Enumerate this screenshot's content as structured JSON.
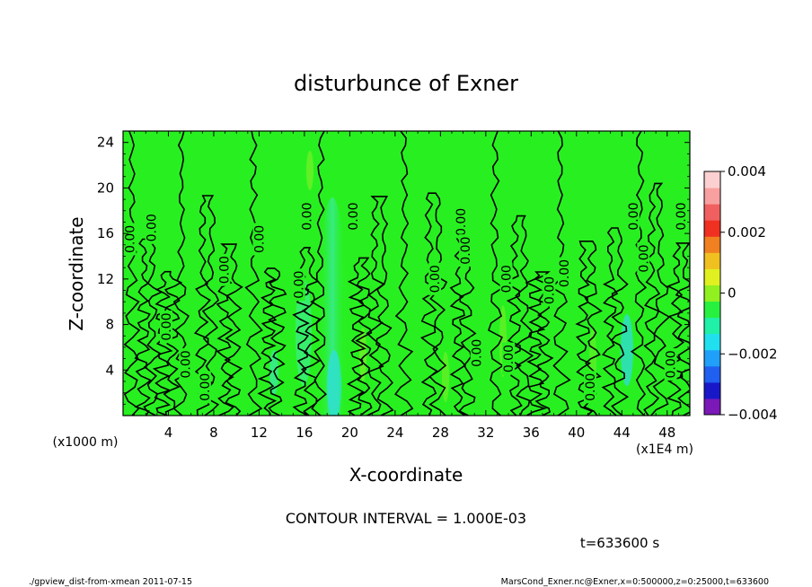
{
  "chart_data": {
    "type": "heatmap",
    "title": "disturbunce of Exner",
    "xlabel": "X-coordinate",
    "ylabel": "Z-coordinate",
    "x_unit_label": "(x1E4 m)",
    "y_unit_label": "(x1000 m)",
    "xlim": [
      0,
      50
    ],
    "ylim": [
      0,
      25
    ],
    "x_ticks": [
      4,
      8,
      12,
      16,
      20,
      24,
      28,
      32,
      36,
      40,
      44,
      48
    ],
    "y_ticks": [
      4,
      8,
      12,
      16,
      20,
      24
    ],
    "x_tick_labels": [
      "4",
      "8",
      "12",
      "16",
      "20",
      "24",
      "28",
      "32",
      "36",
      "40",
      "44",
      "48"
    ],
    "y_tick_labels": [
      "4",
      "8",
      "12",
      "16",
      "20",
      "24"
    ],
    "colorbar": {
      "range": [
        -0.004,
        0.004
      ],
      "tick_values": [
        0.004,
        0.002,
        0,
        -0.002,
        -0.004
      ],
      "tick_labels": [
        "0.004",
        "0.002",
        "0",
        "−0.002",
        "−0.004"
      ],
      "colors": [
        "#7b18b8",
        "#1818c8",
        "#2060f0",
        "#20a0f8",
        "#20e0f0",
        "#20f0a8",
        "#28f040",
        "#90f020",
        "#e0f020",
        "#f0c020",
        "#f08020",
        "#f03020",
        "#f06060",
        "#f8a0a0",
        "#fcd0d0"
      ]
    },
    "background_color": "#28f020",
    "contour_interval_text": "CONTOUR INTERVAL = 1.000E-03",
    "contour_label": "0.00",
    "contour_label_positions": [
      {
        "x": 0.6,
        "z": 15.5
      },
      {
        "x": 2.5,
        "z": 16.5
      },
      {
        "x": 3.8,
        "z": 7.8
      },
      {
        "x": 5.5,
        "z": 4.5
      },
      {
        "x": 7.2,
        "z": 2.5
      },
      {
        "x": 8.9,
        "z": 12.8
      },
      {
        "x": 12.0,
        "z": 15.5
      },
      {
        "x": 15.5,
        "z": 11.5
      },
      {
        "x": 16.2,
        "z": 17.5
      },
      {
        "x": 20.3,
        "z": 17.5
      },
      {
        "x": 27.5,
        "z": 12.0
      },
      {
        "x": 29.8,
        "z": 17.0
      },
      {
        "x": 30.2,
        "z": 14.5
      },
      {
        "x": 31.2,
        "z": 5.5
      },
      {
        "x": 33.8,
        "z": 12.0
      },
      {
        "x": 34.0,
        "z": 5.0
      },
      {
        "x": 37.6,
        "z": 11.0
      },
      {
        "x": 38.9,
        "z": 12.5
      },
      {
        "x": 41.2,
        "z": 2.5
      },
      {
        "x": 45.0,
        "z": 17.5
      },
      {
        "x": 45.9,
        "z": 13.8
      },
      {
        "x": 48.3,
        "z": 4.5
      },
      {
        "x": 49.2,
        "z": 17.5
      }
    ],
    "contour_line_x": [
      0.8,
      1.8,
      3.5,
      5.2,
      7.0,
      9.0,
      11.5,
      12.8,
      15.8,
      17.4,
      20.6,
      22.2,
      24.8,
      27.0,
      29.6,
      32.8,
      34.6,
      36.4,
      38.6,
      40.6,
      43.0,
      45.6,
      46.6,
      48.8
    ]
  },
  "time_label": "t=633600 s",
  "footer": {
    "left": "./gpview_dist-from-xmean  2011-07-15",
    "right": "MarsCond_Exner.nc@Exner,x=0:500000,z=0:25000,t=633600"
  }
}
